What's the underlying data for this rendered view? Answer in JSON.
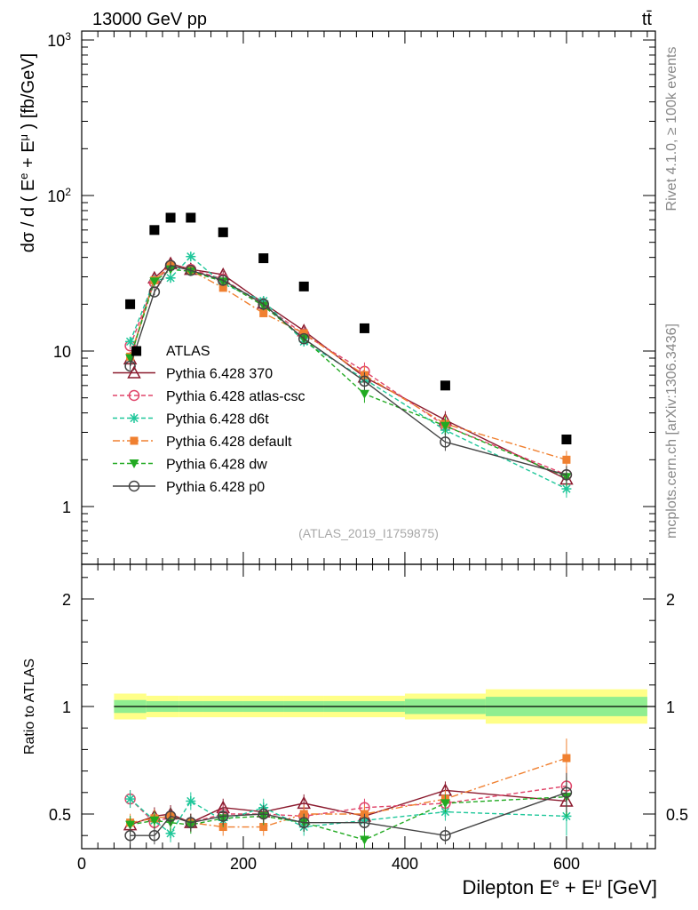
{
  "header": {
    "energy_label": "13000 GeV pp",
    "process_label": "tt̄",
    "right_label_top": "Rivet 4.1.0, ≥ 100k events",
    "right_label_bottom": "mcplots.cern.ch [arXiv:1306.3436]",
    "watermark": "(ATLAS_2019_I1759875)"
  },
  "axes": {
    "main_ylabel": "dσ / d ( E^e + E^μ ) [fb/GeV]",
    "ratio_ylabel": "Ratio to ATLAS",
    "xlabel": "Dilepton E^e + E^μ [GeV]",
    "main_yticks": [
      "1",
      "10",
      "10²",
      "10³"
    ],
    "ratio_yticks": [
      "0.5",
      "1",
      "2"
    ],
    "xticks": [
      "0",
      "200",
      "400",
      "600"
    ]
  },
  "chart_data": {
    "type": "scatter",
    "title": "13000 GeV pp — tt̄",
    "xlabel": "Dilepton E^e + E^μ [GeV]",
    "ylabel": "dσ / d ( E^e + E^μ ) [fb/GeV]",
    "xlim": [
      0,
      710
    ],
    "ylim": [
      0.45,
      1200
    ],
    "yscale": "log",
    "ratio_ylim": [
      0.35,
      2.3
    ],
    "x": [
      60,
      90,
      110,
      135,
      175,
      225,
      275,
      350,
      450,
      600
    ],
    "bin_edges": [
      40,
      80,
      100,
      120,
      150,
      200,
      250,
      300,
      400,
      500,
      700
    ],
    "data": {
      "name": "ATLAS",
      "color": "#000000",
      "values": [
        20,
        60,
        72,
        72,
        58,
        39.5,
        26,
        14,
        6,
        2.7
      ],
      "ratio_band_inner": [
        0.03,
        0.025,
        0.025,
        0.025,
        0.025,
        0.025,
        0.025,
        0.025,
        0.035,
        0.045
      ],
      "ratio_band_outer": [
        0.06,
        0.05,
        0.05,
        0.05,
        0.05,
        0.05,
        0.05,
        0.05,
        0.06,
        0.08
      ]
    },
    "series": [
      {
        "name": "Pythia 6.428 370",
        "color": "#8b1a2e",
        "marker": "triangle-open",
        "line": "solid",
        "values": [
          8.9,
          29.5,
          36.5,
          33.5,
          31,
          20.3,
          13.5,
          6.8,
          3.6,
          1.5
        ]
      },
      {
        "name": "Pythia 6.428 atlas-csc",
        "color": "#e0456a",
        "marker": "circle-open",
        "line": "dashed",
        "values": [
          10.8,
          27.5,
          35.5,
          33.5,
          29,
          19.8,
          12.8,
          7.4,
          3.3,
          1.6
        ]
      },
      {
        "name": "Pythia 6.428 d6t",
        "color": "#1fc79a",
        "marker": "star",
        "line": "dashed",
        "values": [
          11.5,
          28.5,
          29.5,
          40.5,
          27,
          21,
          11.5,
          6.6,
          3.1,
          1.3
        ]
      },
      {
        "name": "Pythia 6.428 default",
        "color": "#f08030",
        "marker": "square",
        "line": "dashdot",
        "values": [
          9.2,
          28.5,
          35.5,
          33,
          25.5,
          17.5,
          13,
          7,
          3.4,
          2.0
        ]
      },
      {
        "name": "Pythia 6.428 dw",
        "color": "#22aa22",
        "marker": "triangle-down",
        "line": "dashed",
        "values": [
          9.0,
          28,
          33.5,
          32.5,
          28,
          19.5,
          12,
          5.3,
          3.3,
          1.55
        ]
      },
      {
        "name": "Pythia 6.428 p0",
        "color": "#444444",
        "marker": "circle-open",
        "line": "solid",
        "values": [
          8.0,
          24,
          35.5,
          33,
          28.5,
          20,
          12,
          6.4,
          2.6,
          1.6
        ]
      }
    ],
    "ratio_series": [
      {
        "name": "Pythia 6.428 370",
        "values": [
          0.45,
          0.49,
          0.5,
          0.46,
          0.53,
          0.51,
          0.55,
          0.49,
          0.61,
          0.56
        ]
      },
      {
        "name": "Pythia 6.428 atlas-csc",
        "values": [
          0.57,
          0.46,
          0.49,
          0.46,
          0.5,
          0.5,
          0.49,
          0.53,
          0.55,
          0.63
        ]
      },
      {
        "name": "Pythia 6.428 d6t",
        "values": [
          0.57,
          0.47,
          0.41,
          0.56,
          0.47,
          0.53,
          0.44,
          0.47,
          0.51,
          0.49
        ]
      },
      {
        "name": "Pythia 6.428 default",
        "values": [
          0.46,
          0.48,
          0.49,
          0.46,
          0.44,
          0.44,
          0.5,
          0.5,
          0.57,
          0.76
        ]
      },
      {
        "name": "Pythia 6.428 dw",
        "values": [
          0.45,
          0.47,
          0.46,
          0.45,
          0.48,
          0.49,
          0.46,
          0.38,
          0.55,
          0.58
        ]
      },
      {
        "name": "Pythia 6.428 p0",
        "values": [
          0.4,
          0.4,
          0.49,
          0.46,
          0.49,
          0.5,
          0.46,
          0.46,
          0.4,
          0.6
        ]
      }
    ]
  }
}
